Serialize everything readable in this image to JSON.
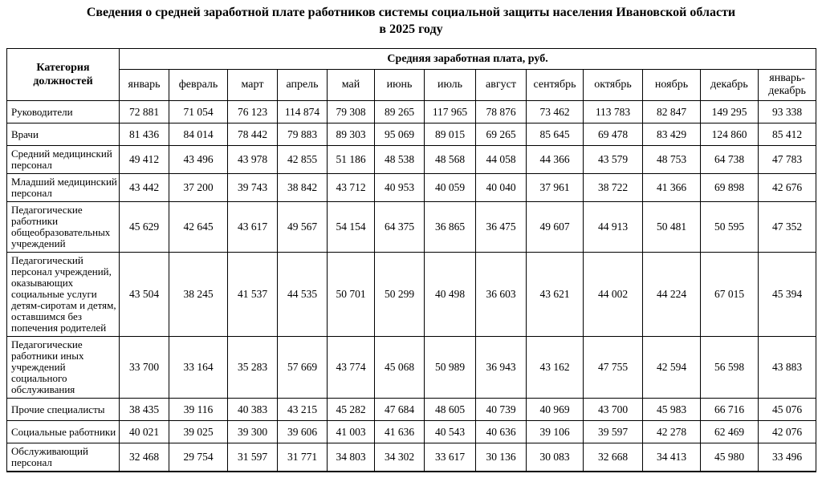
{
  "title": {
    "line1": "Сведения о средней заработной плате работников системы социальной защиты населения Ивановской области",
    "line2": "в 2025 году"
  },
  "table": {
    "category_header": "Категория должностей",
    "group_header": "Средняя заработная плата, руб.",
    "months": [
      "январь",
      "февраль",
      "март",
      "апрель",
      "май",
      "июнь",
      "июль",
      "август",
      "сентябрь",
      "октябрь",
      "ноябрь",
      "декабрь",
      "январь-декабрь"
    ],
    "rows": [
      {
        "category": "Руководители",
        "values": [
          "72 881",
          "71 054",
          "76 123",
          "114 874",
          "79 308",
          "89 265",
          "117 965",
          "78 876",
          "73 462",
          "113 783",
          "82 847",
          "149 295",
          "93 338"
        ]
      },
      {
        "category": "Врачи",
        "values": [
          "81 436",
          "84 014",
          "78 442",
          "79 883",
          "89 303",
          "95 069",
          "89 015",
          "69 265",
          "85 645",
          "69 478",
          "83 429",
          "124 860",
          "85 412"
        ]
      },
      {
        "category": "Средний медицинский персонал",
        "values": [
          "49 412",
          "43 496",
          "43 978",
          "42 855",
          "51 186",
          "48 538",
          "48 568",
          "44 058",
          "44 366",
          "43 579",
          "48 753",
          "64 738",
          "47 783"
        ]
      },
      {
        "category": "Младший медицинский персонал",
        "values": [
          "43 442",
          "37 200",
          "39 743",
          "38 842",
          "43 712",
          "40 953",
          "40 059",
          "40 040",
          "37 961",
          "38 722",
          "41 366",
          "69 898",
          "42 676"
        ]
      },
      {
        "category": "Педагогические работники общеобразовательных учреждений",
        "values": [
          "45 629",
          "42 645",
          "43 617",
          "49 567",
          "54 154",
          "64 375",
          "36 865",
          "36 475",
          "49 607",
          "44 913",
          "50 481",
          "50 595",
          "47 352"
        ]
      },
      {
        "category": "Педагогический персонал учреждений, оказывающих социальные услуги детям-сиротам и детям, оставшимся без попечения родителей",
        "values": [
          "43 504",
          "38 245",
          "41 537",
          "44 535",
          "50 701",
          "50 299",
          "40 498",
          "36 603",
          "43 621",
          "44 002",
          "44 224",
          "67 015",
          "45 394"
        ]
      },
      {
        "category": "Педагогические работники иных учреждений социального обслуживания",
        "values": [
          "33 700",
          "33 164",
          "35 283",
          "57 669",
          "43 774",
          "45 068",
          "50 989",
          "36 943",
          "43 162",
          "47 755",
          "42 594",
          "56 598",
          "43 883"
        ]
      },
      {
        "category": "Прочие специалисты",
        "values": [
          "38 435",
          "39 116",
          "40 383",
          "43 215",
          "45 282",
          "47 684",
          "48 605",
          "40 739",
          "40 969",
          "43 700",
          "45 983",
          "66 716",
          "45 076"
        ]
      },
      {
        "category": "Социальные работники",
        "values": [
          "40 021",
          "39 025",
          "39 300",
          "39 606",
          "41 003",
          "41 636",
          "40 543",
          "40 636",
          "39 106",
          "39 597",
          "42 278",
          "62 469",
          "42 076"
        ]
      },
      {
        "category": "Обслуживающий персонал",
        "values": [
          "32 468",
          "29 754",
          "31 597",
          "31 771",
          "34 803",
          "34 302",
          "33 617",
          "30 136",
          "30 083",
          "32 668",
          "34 413",
          "45 980",
          "33 496"
        ]
      }
    ]
  }
}
